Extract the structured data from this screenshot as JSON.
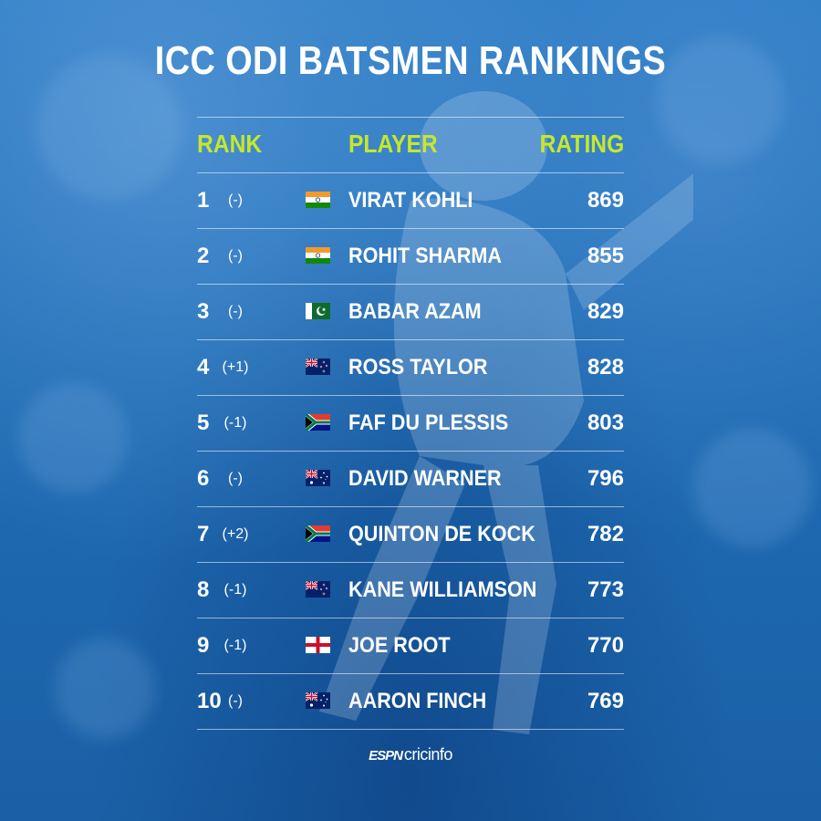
{
  "title": "ICC ODI BATSMEN RANKINGS",
  "headers": {
    "rank": "RANK",
    "player": "PLAYER",
    "rating": "RATING"
  },
  "rows": [
    {
      "rank": "1",
      "change": "(-)",
      "flag": "india-flag",
      "player": "VIRAT KOHLI",
      "rating": "869"
    },
    {
      "rank": "2",
      "change": "(-)",
      "flag": "india-flag",
      "player": "ROHIT SHARMA",
      "rating": "855"
    },
    {
      "rank": "3",
      "change": "(-)",
      "flag": "pakistan-flag",
      "player": "BABAR AZAM",
      "rating": "829"
    },
    {
      "rank": "4",
      "change": "(+1)",
      "flag": "new-zealand-flag",
      "player": "ROSS TAYLOR",
      "rating": "828"
    },
    {
      "rank": "5",
      "change": "(-1)",
      "flag": "south-africa-flag",
      "player": "FAF DU PLESSIS",
      "rating": "803"
    },
    {
      "rank": "6",
      "change": "(-)",
      "flag": "australia-flag",
      "player": "DAVID WARNER",
      "rating": "796"
    },
    {
      "rank": "7",
      "change": "(+2)",
      "flag": "south-africa-flag",
      "player": "QUINTON DE KOCK",
      "rating": "782"
    },
    {
      "rank": "8",
      "change": "(-1)",
      "flag": "new-zealand-flag",
      "player": "KANE WILLIAMSON",
      "rating": "773"
    },
    {
      "rank": "9",
      "change": "(-1)",
      "flag": "england-flag",
      "player": "JOE ROOT",
      "rating": "770"
    },
    {
      "rank": "10",
      "change": "(-)",
      "flag": "australia-flag",
      "player": "AARON FINCH",
      "rating": "769"
    }
  ],
  "logo": {
    "espn": "ESPN",
    "cricinfo": "cricinfo"
  },
  "colors": {
    "accent": "#c4e82c",
    "background": "#1f6fb8",
    "text": "#ffffff"
  }
}
